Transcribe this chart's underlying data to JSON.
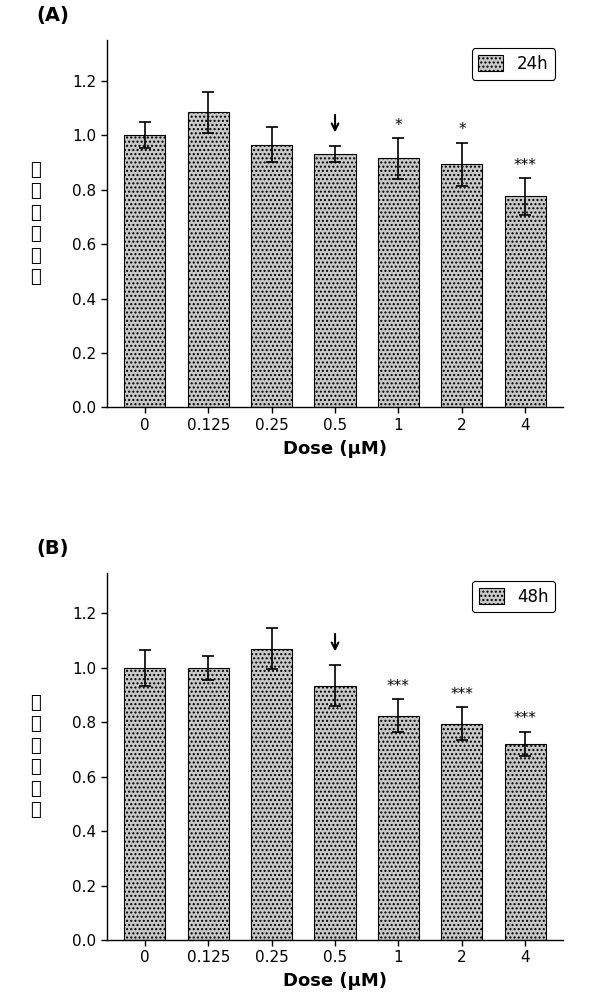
{
  "panel_A": {
    "label": "(A)",
    "legend_label": "24h",
    "categories": [
      "0",
      "0.125",
      "0.25",
      "0.5",
      "1",
      "2",
      "4"
    ],
    "values": [
      1.0,
      1.085,
      0.965,
      0.93,
      0.915,
      0.893,
      0.775
    ],
    "errors": [
      0.048,
      0.075,
      0.065,
      0.03,
      0.075,
      0.08,
      0.068
    ],
    "significance": [
      "",
      "",
      "",
      "",
      "*",
      "*",
      "***"
    ],
    "arrow_index": 3,
    "xlabel": "Dose (μM)",
    "ylabel": "细胞增殖活性",
    "ylim": [
      0.0,
      1.35
    ],
    "yticks": [
      0.0,
      0.2,
      0.4,
      0.6,
      0.8,
      1.0,
      1.2
    ]
  },
  "panel_B": {
    "label": "(B)",
    "legend_label": "48h",
    "categories": [
      "0",
      "0.125",
      "0.25",
      "0.5",
      "1",
      "2",
      "4"
    ],
    "values": [
      1.0,
      1.0,
      1.07,
      0.935,
      0.825,
      0.795,
      0.72
    ],
    "errors": [
      0.065,
      0.045,
      0.075,
      0.075,
      0.06,
      0.06,
      0.045
    ],
    "significance": [
      "",
      "",
      "",
      "",
      "***",
      "***",
      "***"
    ],
    "arrow_index": 3,
    "xlabel": "Dose (μM)",
    "ylabel": "细胞增殖活性",
    "ylim": [
      0.0,
      1.35
    ],
    "yticks": [
      0.0,
      0.2,
      0.4,
      0.6,
      0.8,
      1.0,
      1.2
    ]
  },
  "bar_color": "#c8c8c8",
  "bar_hatch": "....",
  "bar_edgecolor": "#000000",
  "background_color": "#ffffff",
  "figsize": [
    5.93,
    10.0
  ],
  "dpi": 100
}
